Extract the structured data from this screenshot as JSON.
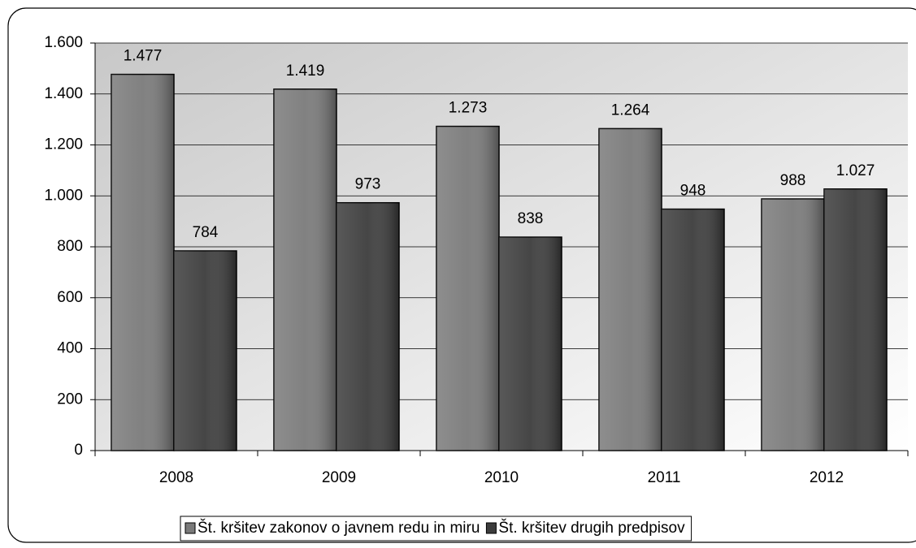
{
  "chart_data": {
    "type": "bar",
    "categories": [
      "2008",
      "2009",
      "2010",
      "2011",
      "2012"
    ],
    "series": [
      {
        "name": "Št. kršitev zakonov o javnem redu in miru",
        "color": "#7a7a7a",
        "values": [
          1477,
          1419,
          1273,
          1264,
          988
        ],
        "value_labels": [
          "1.477",
          "1.419",
          "1.273",
          "1.264",
          "988"
        ]
      },
      {
        "name": "Št. kršitev drugih predpisov",
        "color": "#3c3c3c",
        "values": [
          784,
          973,
          838,
          948,
          1027
        ],
        "value_labels": [
          "784",
          "973",
          "838",
          "948",
          "1.027"
        ]
      }
    ],
    "ylim": [
      0,
      1600
    ],
    "yticks": [
      0,
      200,
      400,
      600,
      800,
      {
        "value": 1000,
        "label": "1.000"
      },
      {
        "value": 1200,
        "label": "1.200"
      },
      {
        "value": 1400,
        "label": "1.400"
      },
      {
        "value": 1600,
        "label": "1.600"
      }
    ],
    "grid": true,
    "legend": "bottom"
  }
}
